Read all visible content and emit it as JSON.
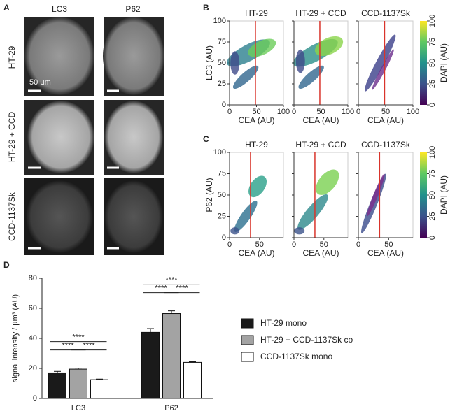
{
  "panel_a": {
    "letter": "A",
    "columns": [
      "LC3",
      "P62"
    ],
    "rows": [
      "HT-29",
      "HT-29 + CCD",
      "CCD-1137Sk"
    ],
    "scale_bar": "50 μm"
  },
  "chart_data": [
    {
      "type": "density-scatter",
      "letter": "B",
      "titles": [
        "HT-29",
        "HT-29 + CCD",
        "CCD-1137Sk"
      ],
      "ylabel": "LC3 (AU)",
      "xlabel": "CEA (AU)",
      "xlim": [
        0,
        100
      ],
      "ylim": [
        0,
        100
      ],
      "xticks": [
        0,
        50,
        100
      ],
      "yticks": [
        0,
        25,
        50,
        75,
        100
      ],
      "thresholds": [
        48,
        48,
        48
      ],
      "threshold_color": "#d9342b",
      "colorbar": {
        "label": "DAPI (AU)",
        "lim": [
          0,
          100
        ],
        "ticks": [
          0,
          25,
          50,
          75,
          100
        ]
      }
    },
    {
      "type": "density-scatter",
      "letter": "C",
      "titles": [
        "HT-29",
        "HT-29 + CCD",
        "CCD-1137Sk"
      ],
      "ylabel": "P62 (AU)",
      "xlabel": "CEA (AU)",
      "xlim": [
        0,
        90
      ],
      "ylim": [
        0,
        100
      ],
      "xticks": [
        0,
        50
      ],
      "yticks": [
        0,
        25,
        50,
        75,
        100
      ],
      "thresholds": [
        35,
        35,
        35
      ],
      "threshold_color": "#d9342b",
      "colorbar": {
        "label": "DAPI (AU)",
        "lim": [
          0,
          100
        ],
        "ticks": [
          0,
          25,
          50,
          75,
          100
        ]
      }
    },
    {
      "type": "bar",
      "letter": "D",
      "ylabel": "signal intensity / µm³ (AU)",
      "categories": [
        "LC3",
        "P62"
      ],
      "ylim": [
        0,
        80
      ],
      "yticks": [
        0,
        20,
        40,
        60,
        80
      ],
      "series": [
        {
          "name": "HT-29 mono",
          "color": "#1a1a1a",
          "values": [
            17,
            44
          ],
          "errors": [
            1,
            2.5
          ]
        },
        {
          "name": "HT-29 + CCD-1137Sk co",
          "color": "#a3a3a3",
          "values": [
            19.5,
            56.5
          ],
          "errors": [
            0.7,
            1.8
          ]
        },
        {
          "name": "CCD-1137Sk mono",
          "color": "#ffffff",
          "values": [
            12.5,
            24
          ],
          "errors": [
            0.4,
            0.4
          ]
        }
      ],
      "significance": [
        {
          "group": 0,
          "bars": [
            0,
            1
          ],
          "label": "****"
        },
        {
          "group": 0,
          "bars": [
            1,
            2
          ],
          "label": "****"
        },
        {
          "group": 0,
          "bars": [
            0,
            2
          ],
          "label": "****"
        },
        {
          "group": 1,
          "bars": [
            0,
            1
          ],
          "label": "****"
        },
        {
          "group": 1,
          "bars": [
            1,
            2
          ],
          "label": "****"
        },
        {
          "group": 1,
          "bars": [
            0,
            2
          ],
          "label": "****"
        }
      ]
    }
  ]
}
